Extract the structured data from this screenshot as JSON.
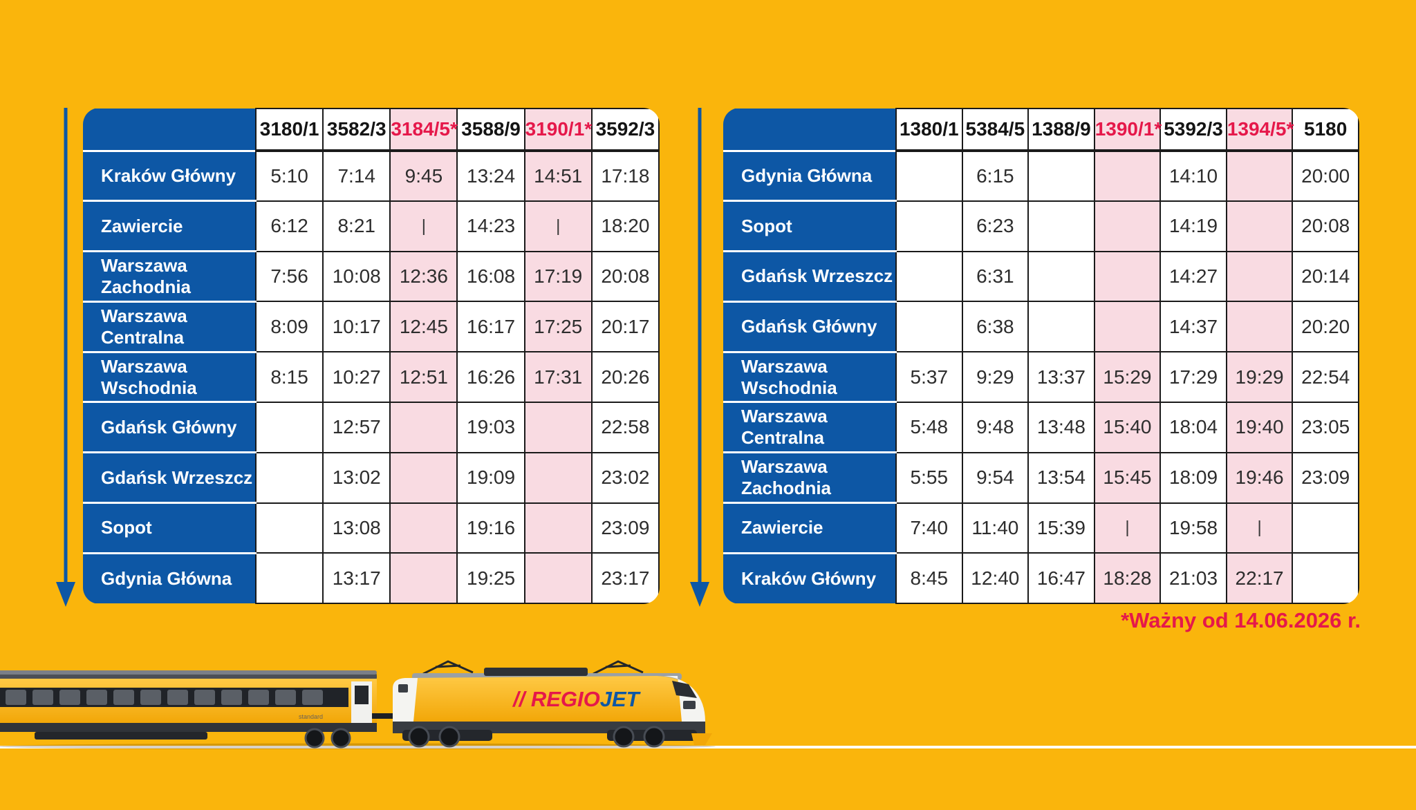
{
  "page": {
    "background": "#FAB50C",
    "footnote": "*Ważny od 14.06.2026 r."
  },
  "colors": {
    "yellow_bg": "#FAB50C",
    "blue": "#0D57A5",
    "pink_highlight": "#F9DBE2",
    "red": "#E5184A",
    "cell_border": "#1A1A1A",
    "time_text": "#2D2D2D"
  },
  "tables": [
    {
      "name": "krakow-to-gdynia",
      "columns": [
        {
          "label": "3180/1",
          "starred": false
        },
        {
          "label": "3582/3",
          "starred": false
        },
        {
          "label": "3184/5*",
          "starred": true
        },
        {
          "label": "3588/9",
          "starred": false
        },
        {
          "label": "3190/1*",
          "starred": true
        },
        {
          "label": "3592/3",
          "starred": false
        }
      ],
      "rows": [
        {
          "station": "Kraków Główny",
          "times": [
            "5:10",
            "7:14",
            "9:45",
            "13:24",
            "14:51",
            "17:18"
          ]
        },
        {
          "station": "Zawiercie",
          "times": [
            "6:12",
            "8:21",
            "|",
            "14:23",
            "|",
            "18:20"
          ]
        },
        {
          "station": "Warszawa Zachodnia",
          "times": [
            "7:56",
            "10:08",
            "12:36",
            "16:08",
            "17:19",
            "20:08"
          ]
        },
        {
          "station": "Warszawa Centralna",
          "times": [
            "8:09",
            "10:17",
            "12:45",
            "16:17",
            "17:25",
            "20:17"
          ]
        },
        {
          "station": "Warszawa Wschodnia",
          "times": [
            "8:15",
            "10:27",
            "12:51",
            "16:26",
            "17:31",
            "20:26"
          ]
        },
        {
          "station": "Gdańsk Główny",
          "times": [
            "",
            "12:57",
            "",
            "19:03",
            "",
            "22:58"
          ]
        },
        {
          "station": "Gdańsk Wrzeszcz",
          "times": [
            "",
            "13:02",
            "",
            "19:09",
            "",
            "23:02"
          ]
        },
        {
          "station": "Sopot",
          "times": [
            "",
            "13:08",
            "",
            "19:16",
            "",
            "23:09"
          ]
        },
        {
          "station": "Gdynia Główna",
          "times": [
            "",
            "13:17",
            "",
            "19:25",
            "",
            "23:17"
          ]
        }
      ]
    },
    {
      "name": "gdynia-to-krakow",
      "columns": [
        {
          "label": "1380/1",
          "starred": false
        },
        {
          "label": "5384/5",
          "starred": false
        },
        {
          "label": "1388/9",
          "starred": false
        },
        {
          "label": "1390/1*",
          "starred": true
        },
        {
          "label": "5392/3",
          "starred": false
        },
        {
          "label": "1394/5*",
          "starred": true
        },
        {
          "label": "5180",
          "starred": false
        }
      ],
      "rows": [
        {
          "station": "Gdynia Główna",
          "times": [
            "",
            "6:15",
            "",
            "",
            "14:10",
            "",
            "20:00"
          ]
        },
        {
          "station": "Sopot",
          "times": [
            "",
            "6:23",
            "",
            "",
            "14:19",
            "",
            "20:08"
          ]
        },
        {
          "station": "Gdańsk Wrzeszcz",
          "times": [
            "",
            "6:31",
            "",
            "",
            "14:27",
            "",
            "20:14"
          ]
        },
        {
          "station": "Gdańsk Główny",
          "times": [
            "",
            "6:38",
            "",
            "",
            "14:37",
            "",
            "20:20"
          ]
        },
        {
          "station": "Warszawa Wschodnia",
          "times": [
            "5:37",
            "9:29",
            "13:37",
            "15:29",
            "17:29",
            "19:29",
            "22:54"
          ]
        },
        {
          "station": "Warszawa Centralna",
          "times": [
            "5:48",
            "9:48",
            "13:48",
            "15:40",
            "18:04",
            "19:40",
            "23:05"
          ]
        },
        {
          "station": "Warszawa Zachodnia",
          "times": [
            "5:55",
            "9:54",
            "13:54",
            "15:45",
            "18:09",
            "19:46",
            "23:09"
          ]
        },
        {
          "station": "Zawiercie",
          "times": [
            "7:40",
            "11:40",
            "15:39",
            "|",
            "19:58",
            "|",
            ""
          ]
        },
        {
          "station": "Kraków Główny",
          "times": [
            "8:45",
            "12:40",
            "16:47",
            "18:28",
            "21:03",
            "22:17",
            ""
          ]
        }
      ]
    }
  ],
  "train": {
    "logo_slashes": "//",
    "logo_regio": "REGIO",
    "logo_jet": "JET",
    "car_class_label": "standard"
  }
}
